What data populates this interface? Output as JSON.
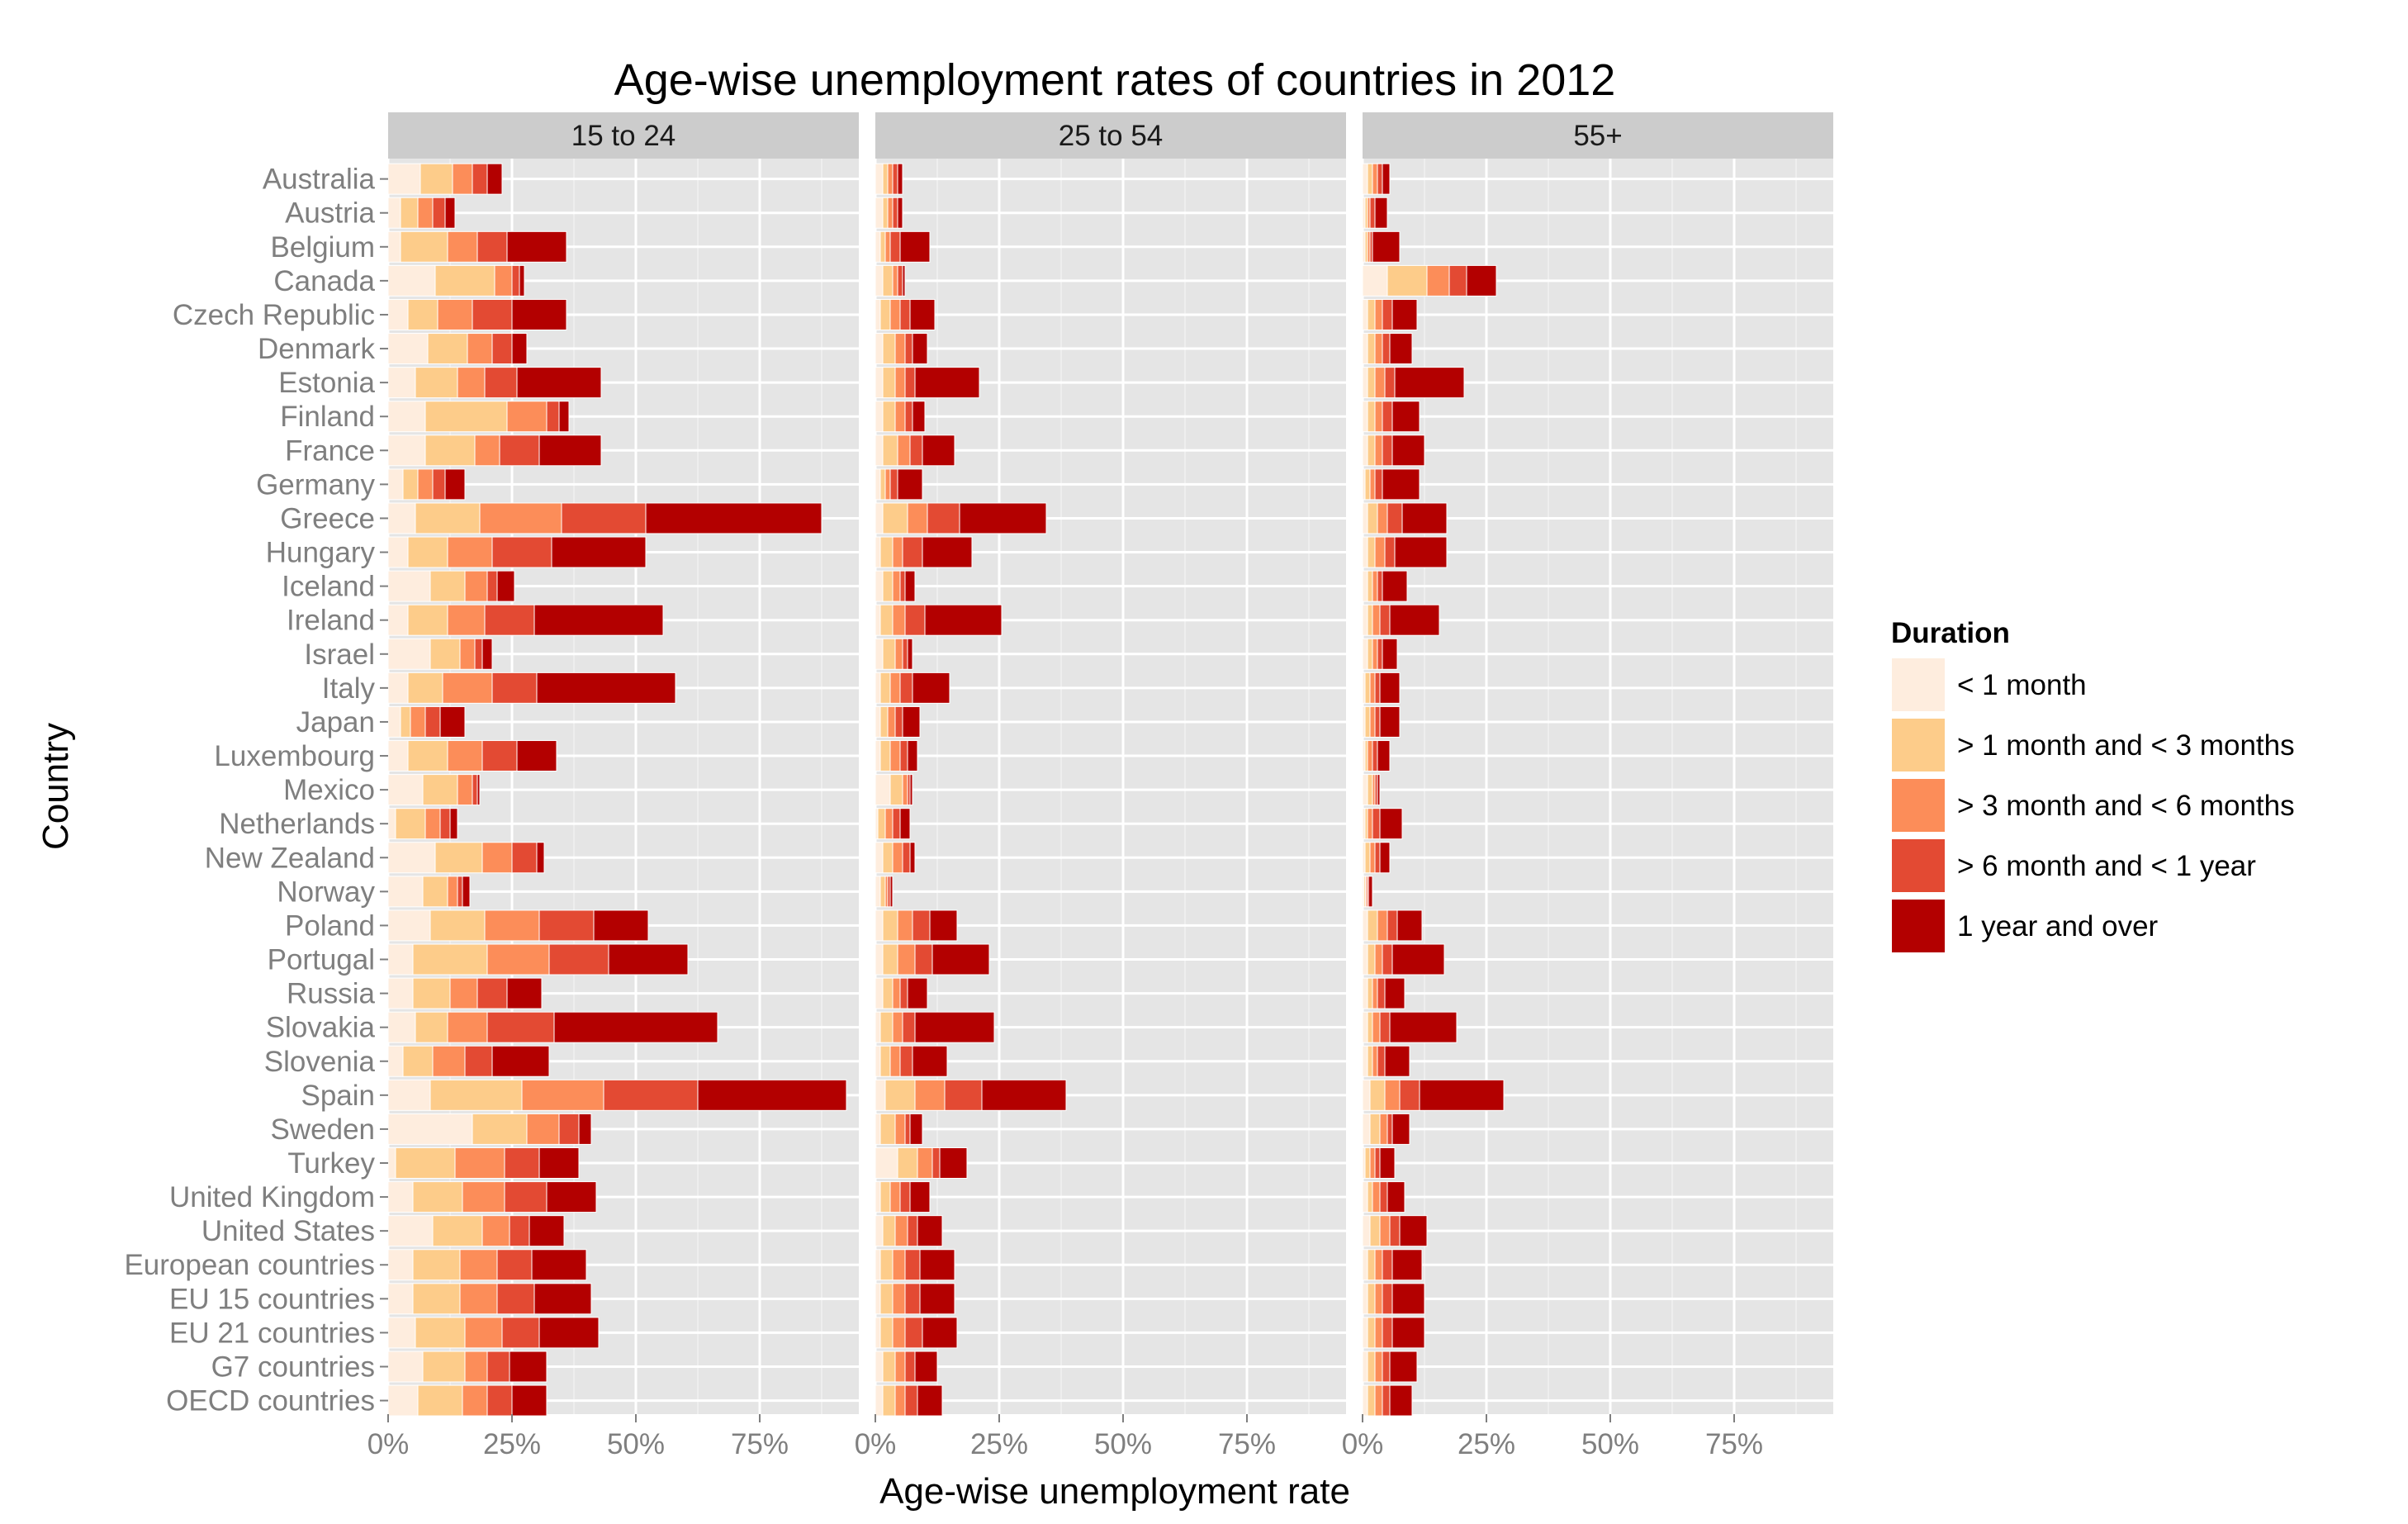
{
  "chart_data": {
    "type": "bar",
    "orientation": "horizontal",
    "stacked": true,
    "title": "Age-wise unemployment rates of countries in 2012",
    "xlabel": "Age-wise unemployment rate",
    "ylabel": "Country",
    "xlim": [
      0,
      0.95
    ],
    "x_ticks": [
      0,
      0.25,
      0.5,
      0.75
    ],
    "x_tick_labels": [
      "0%",
      "25%",
      "50%",
      "75%"
    ],
    "grid": true,
    "legend_title": "Duration",
    "legend_position": "right",
    "facets": [
      "15 to 24",
      "25 to 54",
      "55+"
    ],
    "categories": [
      "Australia",
      "Austria",
      "Belgium",
      "Canada",
      "Czech Republic",
      "Denmark",
      "Estonia",
      "Finland",
      "France",
      "Germany",
      "Greece",
      "Hungary",
      "Iceland",
      "Ireland",
      "Israel",
      "Italy",
      "Japan",
      "Luxembourg",
      "Mexico",
      "Netherlands",
      "New Zealand",
      "Norway",
      "Poland",
      "Portugal",
      "Russia",
      "Slovakia",
      "Slovenia",
      "Spain",
      "Sweden",
      "Turkey",
      "United Kingdom",
      "United States",
      "European countries",
      "EU 15 countries",
      "EU 21 countries",
      "G7 countries",
      "OECD countries"
    ],
    "series": [
      {
        "name": "< 1 month",
        "color": "#FEEDDE"
      },
      {
        "name": "> 1 month and < 3 months",
        "color": "#FDCC8A"
      },
      {
        "name": "> 3 month and < 6 months",
        "color": "#FC8D59"
      },
      {
        "name": "> 6 month and < 1 year",
        "color": "#E34A33"
      },
      {
        "name": "1 year and over",
        "color": "#B30000"
      }
    ],
    "panels": [
      {
        "facet": "15 to 24",
        "values": [
          [
            0.065,
            0.065,
            0.04,
            0.03,
            0.03
          ],
          [
            0.025,
            0.035,
            0.03,
            0.025,
            0.02
          ],
          [
            0.025,
            0.095,
            0.06,
            0.06,
            0.12
          ],
          [
            0.095,
            0.12,
            0.035,
            0.015,
            0.01
          ],
          [
            0.04,
            0.06,
            0.07,
            0.08,
            0.11
          ],
          [
            0.08,
            0.08,
            0.05,
            0.04,
            0.03
          ],
          [
            0.055,
            0.085,
            0.055,
            0.065,
            0.17
          ],
          [
            0.075,
            0.165,
            0.08,
            0.025,
            0.02
          ],
          [
            0.075,
            0.1,
            0.05,
            0.08,
            0.125
          ],
          [
            0.03,
            0.03,
            0.03,
            0.025,
            0.04
          ],
          [
            0.055,
            0.13,
            0.165,
            0.17,
            0.355
          ],
          [
            0.04,
            0.08,
            0.09,
            0.12,
            0.19
          ],
          [
            0.085,
            0.07,
            0.045,
            0.02,
            0.035
          ],
          [
            0.04,
            0.08,
            0.075,
            0.1,
            0.26
          ],
          [
            0.085,
            0.06,
            0.03,
            0.015,
            0.02
          ],
          [
            0.04,
            0.07,
            0.1,
            0.09,
            0.28
          ],
          [
            0.025,
            0.02,
            0.03,
            0.03,
            0.05
          ],
          [
            0.04,
            0.08,
            0.07,
            0.07,
            0.08
          ],
          [
            0.07,
            0.07,
            0.03,
            0.01,
            0.005
          ],
          [
            0.015,
            0.06,
            0.03,
            0.02,
            0.015
          ],
          [
            0.095,
            0.095,
            0.06,
            0.05,
            0.015
          ],
          [
            0.07,
            0.05,
            0.02,
            0.01,
            0.015
          ],
          [
            0.085,
            0.11,
            0.11,
            0.11,
            0.11
          ],
          [
            0.05,
            0.15,
            0.125,
            0.12,
            0.16
          ],
          [
            0.05,
            0.075,
            0.055,
            0.06,
            0.07
          ],
          [
            0.055,
            0.065,
            0.08,
            0.135,
            0.33
          ],
          [
            0.03,
            0.06,
            0.065,
            0.055,
            0.115
          ],
          [
            0.085,
            0.185,
            0.165,
            0.19,
            0.3
          ],
          [
            0.17,
            0.11,
            0.065,
            0.04,
            0.025
          ],
          [
            0.015,
            0.12,
            0.1,
            0.07,
            0.08
          ],
          [
            0.05,
            0.1,
            0.085,
            0.085,
            0.1
          ],
          [
            0.09,
            0.1,
            0.055,
            0.04,
            0.07
          ],
          [
            0.05,
            0.095,
            0.075,
            0.07,
            0.11
          ],
          [
            0.05,
            0.095,
            0.075,
            0.075,
            0.115
          ],
          [
            0.055,
            0.1,
            0.075,
            0.075,
            0.12
          ],
          [
            0.07,
            0.085,
            0.045,
            0.045,
            0.075
          ],
          [
            0.06,
            0.09,
            0.05,
            0.05,
            0.07
          ]
        ]
      },
      {
        "facet": "25 to 54",
        "values": [
          [
            0.015,
            0.01,
            0.01,
            0.01,
            0.01
          ],
          [
            0.015,
            0.01,
            0.01,
            0.01,
            0.01
          ],
          [
            0.01,
            0.01,
            0.01,
            0.02,
            0.06
          ],
          [
            0.015,
            0.02,
            0.01,
            0.01,
            0.005
          ],
          [
            0.01,
            0.02,
            0.02,
            0.02,
            0.05
          ],
          [
            0.015,
            0.025,
            0.02,
            0.015,
            0.03
          ],
          [
            0.015,
            0.025,
            0.02,
            0.02,
            0.13
          ],
          [
            0.015,
            0.025,
            0.02,
            0.015,
            0.025
          ],
          [
            0.015,
            0.03,
            0.025,
            0.025,
            0.065
          ],
          [
            0.01,
            0.01,
            0.01,
            0.015,
            0.05
          ],
          [
            0.015,
            0.05,
            0.04,
            0.065,
            0.175
          ],
          [
            0.01,
            0.025,
            0.02,
            0.04,
            0.1
          ],
          [
            0.015,
            0.02,
            0.015,
            0.01,
            0.02
          ],
          [
            0.01,
            0.025,
            0.025,
            0.04,
            0.155
          ],
          [
            0.015,
            0.025,
            0.015,
            0.01,
            0.01
          ],
          [
            0.01,
            0.02,
            0.02,
            0.025,
            0.075
          ],
          [
            0.01,
            0.015,
            0.015,
            0.015,
            0.035
          ],
          [
            0.01,
            0.02,
            0.02,
            0.015,
            0.02
          ],
          [
            0.03,
            0.025,
            0.01,
            0.005,
            0.005
          ],
          [
            0.005,
            0.015,
            0.015,
            0.015,
            0.02
          ],
          [
            0.015,
            0.02,
            0.02,
            0.015,
            0.01
          ],
          [
            0.01,
            0.01,
            0.005,
            0.005,
            0.005
          ],
          [
            0.015,
            0.03,
            0.03,
            0.035,
            0.055
          ],
          [
            0.015,
            0.03,
            0.035,
            0.035,
            0.115
          ],
          [
            0.015,
            0.02,
            0.015,
            0.015,
            0.04
          ],
          [
            0.01,
            0.025,
            0.02,
            0.025,
            0.16
          ],
          [
            0.01,
            0.02,
            0.02,
            0.025,
            0.07
          ],
          [
            0.02,
            0.06,
            0.06,
            0.075,
            0.17
          ],
          [
            0.01,
            0.03,
            0.02,
            0.01,
            0.025
          ],
          [
            0.045,
            0.04,
            0.03,
            0.015,
            0.055
          ],
          [
            0.01,
            0.02,
            0.02,
            0.02,
            0.04
          ],
          [
            0.015,
            0.025,
            0.025,
            0.02,
            0.05
          ],
          [
            0.01,
            0.025,
            0.025,
            0.03,
            0.07
          ],
          [
            0.01,
            0.025,
            0.025,
            0.03,
            0.07
          ],
          [
            0.01,
            0.025,
            0.025,
            0.035,
            0.07
          ],
          [
            0.015,
            0.025,
            0.02,
            0.02,
            0.045
          ],
          [
            0.015,
            0.025,
            0.02,
            0.025,
            0.05
          ]
        ]
      },
      {
        "facet": "55+",
        "values": [
          [
            0.01,
            0.01,
            0.01,
            0.01,
            0.015
          ],
          [
            0.005,
            0.005,
            0.005,
            0.01,
            0.025
          ],
          [
            0.005,
            0.005,
            0.005,
            0.005,
            0.055
          ],
          [
            0.05,
            0.08,
            0.045,
            0.035,
            0.06
          ],
          [
            0.01,
            0.015,
            0.015,
            0.02,
            0.05
          ],
          [
            0.01,
            0.015,
            0.015,
            0.015,
            0.045
          ],
          [
            0.01,
            0.015,
            0.02,
            0.02,
            0.14
          ],
          [
            0.01,
            0.015,
            0.015,
            0.02,
            0.055
          ],
          [
            0.01,
            0.015,
            0.015,
            0.02,
            0.065
          ],
          [
            0.005,
            0.01,
            0.01,
            0.015,
            0.075
          ],
          [
            0.01,
            0.02,
            0.02,
            0.03,
            0.09
          ],
          [
            0.01,
            0.015,
            0.02,
            0.02,
            0.105
          ],
          [
            0.01,
            0.01,
            0.01,
            0.01,
            0.05
          ],
          [
            0.01,
            0.01,
            0.015,
            0.02,
            0.1
          ],
          [
            0.01,
            0.01,
            0.01,
            0.01,
            0.03
          ],
          [
            0.005,
            0.01,
            0.01,
            0.01,
            0.04
          ],
          [
            0.005,
            0.01,
            0.01,
            0.01,
            0.04
          ],
          [
            0.005,
            0.005,
            0.01,
            0.01,
            0.025
          ],
          [
            0.01,
            0.01,
            0.005,
            0.005,
            0.005
          ],
          [
            0.005,
            0.005,
            0.01,
            0.015,
            0.045
          ],
          [
            0.005,
            0.01,
            0.01,
            0.01,
            0.02
          ],
          [
            0.003,
            0.003,
            0.003,
            0.003,
            0.008
          ],
          [
            0.01,
            0.02,
            0.02,
            0.02,
            0.05
          ],
          [
            0.01,
            0.015,
            0.015,
            0.02,
            0.105
          ],
          [
            0.01,
            0.01,
            0.01,
            0.015,
            0.04
          ],
          [
            0.01,
            0.01,
            0.015,
            0.02,
            0.135
          ],
          [
            0.01,
            0.01,
            0.01,
            0.015,
            0.05
          ],
          [
            0.015,
            0.03,
            0.03,
            0.04,
            0.17
          ],
          [
            0.015,
            0.02,
            0.015,
            0.01,
            0.035
          ],
          [
            0.005,
            0.01,
            0.01,
            0.01,
            0.03
          ],
          [
            0.01,
            0.01,
            0.015,
            0.015,
            0.035
          ],
          [
            0.015,
            0.02,
            0.02,
            0.02,
            0.055
          ],
          [
            0.01,
            0.015,
            0.015,
            0.02,
            0.06
          ],
          [
            0.01,
            0.015,
            0.015,
            0.02,
            0.065
          ],
          [
            0.01,
            0.015,
            0.015,
            0.02,
            0.065
          ],
          [
            0.01,
            0.015,
            0.015,
            0.015,
            0.055
          ],
          [
            0.01,
            0.015,
            0.015,
            0.015,
            0.045
          ]
        ]
      }
    ]
  }
}
